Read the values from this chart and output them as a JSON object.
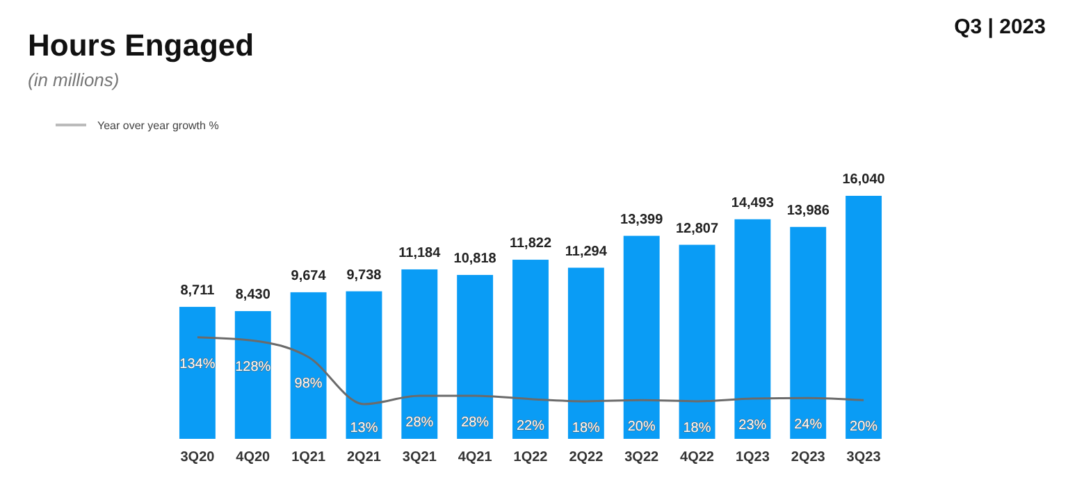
{
  "chart_data": {
    "type": "bar",
    "title": "Hours Engaged",
    "subtitle": "(in millions)",
    "annotations": [
      "Q3 | 2023"
    ],
    "categories": [
      "3Q20",
      "4Q20",
      "1Q21",
      "2Q21",
      "3Q21",
      "4Q21",
      "1Q22",
      "2Q22",
      "3Q22",
      "4Q22",
      "1Q23",
      "2Q23",
      "3Q23"
    ],
    "series": [
      {
        "color": "#0a9cf5",
        "values": [
          8711,
          8430,
          9674,
          9738,
          11184,
          10818,
          11822,
          11294,
          13399,
          12807,
          14493,
          13986,
          16040
        ],
        "value_labels": [
          "8,711",
          "8,430",
          "9,674",
          "9,738",
          "11,184",
          "10,818",
          "11,822",
          "11,294",
          "13,399",
          "12,807",
          "14,493",
          "13,986",
          "16,040"
        ]
      },
      {
        "type": "line",
        "axis": "y2",
        "name": "Year over year growth %",
        "color": "#6b6b6b",
        "values": [
          134,
          128,
          98,
          13,
          28,
          28,
          22,
          18,
          20,
          18,
          23,
          24,
          20
        ],
        "value_labels": [
          "134%",
          "128%",
          "98%",
          "13%",
          "28%",
          "28%",
          "22%",
          "18%",
          "20%",
          "18%",
          "23%",
          "24%",
          "20%"
        ]
      }
    ],
    "ylim": [
      0,
      16040
    ],
    "y2lim": [
      -50,
      390
    ],
    "tick_labels": "x",
    "grid": false,
    "legend": "top left",
    "marker": "none",
    "line_style": "solid"
  }
}
